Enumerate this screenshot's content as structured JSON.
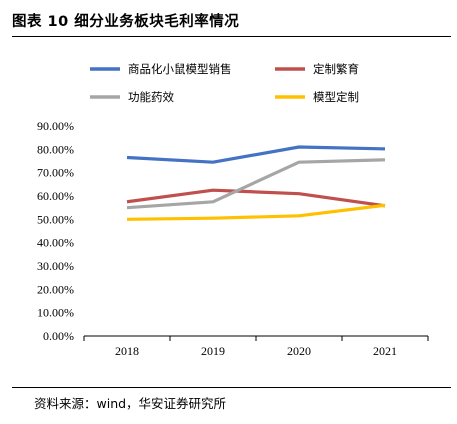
{
  "figure": {
    "title": "图表 10  细分业务板块毛利率情况",
    "source": "资料来源：wind，华安证券研究所"
  },
  "colors": {
    "商品化小鼠模型销售": "#4472c4",
    "定制繁育": "#c0504d",
    "功能药效": "#a6a6a6",
    "模型定制": "#ffc000"
  },
  "chart_data": {
    "type": "line",
    "title": "",
    "xlabel": "",
    "ylabel": "",
    "categories": [
      "2018",
      "2019",
      "2020",
      "2021"
    ],
    "ylim": [
      0,
      90
    ],
    "y_ticks": [
      "0.00%",
      "10.00%",
      "20.00%",
      "30.00%",
      "40.00%",
      "50.00%",
      "60.00%",
      "70.00%",
      "80.00%",
      "90.00%"
    ],
    "grid": false,
    "legend_position": "top",
    "series": [
      {
        "name": "商品化小鼠模型销售",
        "values": [
          76.5,
          74.5,
          81.0,
          80.2
        ]
      },
      {
        "name": "定制繁育",
        "values": [
          57.5,
          62.5,
          61.0,
          55.8
        ]
      },
      {
        "name": "功能药效",
        "values": [
          55.0,
          57.5,
          74.5,
          75.5
        ]
      },
      {
        "name": "模型定制",
        "values": [
          50.0,
          50.5,
          51.5,
          56.0
        ]
      }
    ]
  }
}
